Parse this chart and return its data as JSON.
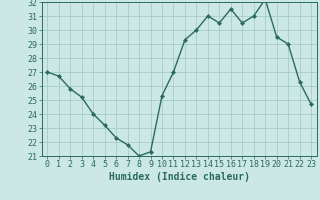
{
  "x": [
    0,
    1,
    2,
    3,
    4,
    5,
    6,
    7,
    8,
    9,
    10,
    11,
    12,
    13,
    14,
    15,
    16,
    17,
    18,
    19,
    20,
    21,
    22,
    23
  ],
  "y": [
    27,
    26.7,
    25.8,
    25.2,
    24.0,
    23.2,
    22.3,
    21.8,
    21.0,
    21.3,
    25.3,
    27.0,
    29.3,
    30.0,
    31.0,
    30.5,
    31.5,
    30.5,
    31.0,
    32.2,
    29.5,
    29.0,
    26.3,
    24.7
  ],
  "xlabel": "Humidex (Indice chaleur)",
  "xlim": [
    -0.5,
    23.5
  ],
  "ylim": [
    21,
    32
  ],
  "yticks": [
    21,
    22,
    23,
    24,
    25,
    26,
    27,
    28,
    29,
    30,
    31,
    32
  ],
  "xticks": [
    0,
    1,
    2,
    3,
    4,
    5,
    6,
    7,
    8,
    9,
    10,
    11,
    12,
    13,
    14,
    15,
    16,
    17,
    18,
    19,
    20,
    21,
    22,
    23
  ],
  "line_color": "#2a6b5e",
  "marker": "D",
  "marker_size": 2.0,
  "bg_color": "#cce8e4",
  "grid_color": "#a8ccca",
  "xlabel_fontsize": 7,
  "tick_fontsize": 6,
  "line_width": 1.0
}
